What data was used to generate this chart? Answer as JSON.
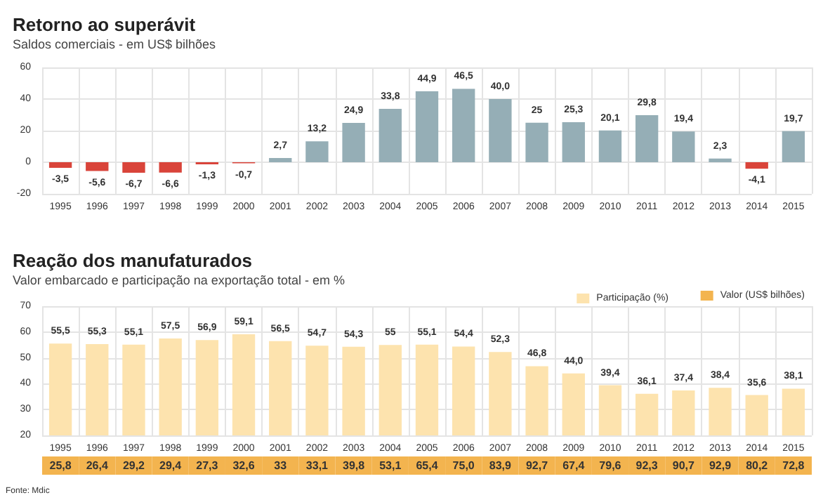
{
  "chart_data": [
    {
      "type": "bar",
      "title": "Retorno ao superávit",
      "subtitle": "Saldos comerciais - em US$ bilhões",
      "categories": [
        "1995",
        "1996",
        "1997",
        "1998",
        "1999",
        "2000",
        "2001",
        "2002",
        "2003",
        "2004",
        "2005",
        "2006",
        "2007",
        "2008",
        "2009",
        "2010",
        "2011",
        "2012",
        "2013",
        "2014",
        "2015"
      ],
      "values": [
        -3.5,
        -5.6,
        -6.7,
        -6.6,
        -1.3,
        -0.7,
        2.7,
        13.2,
        24.9,
        33.8,
        44.9,
        46.5,
        40.0,
        25,
        25.3,
        20.1,
        29.8,
        19.4,
        2.3,
        -4.1,
        19.7
      ],
      "colors": [
        "#d9443a",
        "#d9443a",
        "#d9443a",
        "#d9443a",
        "#d9443a",
        "#d9443a",
        "#95aeb6",
        "#95aeb6",
        "#95aeb6",
        "#95aeb6",
        "#95aeb6",
        "#95aeb6",
        "#95aeb6",
        "#95aeb6",
        "#95aeb6",
        "#95aeb6",
        "#95aeb6",
        "#95aeb6",
        "#95aeb6",
        "#d9443a",
        "#95aeb6"
      ],
      "value_labels": [
        "-3,5",
        "-5,6",
        "-6,7",
        "-6,6",
        "-1,3",
        "-0,7",
        "2,7",
        "13,2",
        "24,9",
        "33,8",
        "44,9",
        "46,5",
        "40,0",
        "25",
        "25,3",
        "20,1",
        "29,8",
        "19,4",
        "2,3",
        "-4,1",
        "19,7"
      ],
      "ylim": [
        -20,
        60
      ],
      "yticks": [
        -20,
        0,
        20,
        40,
        60
      ],
      "grid": true
    },
    {
      "type": "bar",
      "title": "Reação dos manufaturados",
      "subtitle": "Valor embarcado e participação na exportação total - em %",
      "categories": [
        "1995",
        "1996",
        "1997",
        "1998",
        "1999",
        "2000",
        "2001",
        "2002",
        "2003",
        "2004",
        "2005",
        "2006",
        "2007",
        "2008",
        "2009",
        "2010",
        "2011",
        "2012",
        "2013",
        "2014",
        "2015"
      ],
      "series": [
        {
          "name": "Participação (%)",
          "color": "#fde3ae",
          "values": [
            55.5,
            55.3,
            55.1,
            57.5,
            56.9,
            59.1,
            56.5,
            54.7,
            54.3,
            55,
            55.1,
            54.4,
            52.3,
            46.8,
            44.0,
            39.4,
            36.1,
            37.4,
            38.4,
            35.6,
            38.1
          ],
          "value_labels": [
            "55,5",
            "55,3",
            "55,1",
            "57,5",
            "56,9",
            "59,1",
            "56,5",
            "54,7",
            "54,3",
            "55",
            "55,1",
            "54,4",
            "52,3",
            "46,8",
            "44,0",
            "39,4",
            "36,1",
            "37,4",
            "38,4",
            "35,6",
            "38,1"
          ]
        }
      ],
      "ylim": [
        20,
        70
      ],
      "yticks": [
        20,
        30,
        40,
        50,
        60,
        70
      ],
      "grid": true,
      "legend": "top right",
      "annotations": [
        "Fonte: Mdic"
      ]
    },
    {
      "type": "other",
      "categories": [
        null,
        null,
        null,
        null,
        null,
        null,
        null,
        null,
        null,
        null,
        null,
        null,
        null,
        null,
        null,
        null,
        null,
        null,
        null,
        null,
        null
      ],
      "series": [
        {
          "name": "Valor (US$ bilhões)",
          "color": "#f3b44f",
          "values": [
            25.8,
            26.4,
            29.2,
            29.4,
            27.3,
            32.6,
            33,
            33.1,
            39.8,
            53.1,
            65.4,
            75.0,
            83.9,
            92.7,
            67.4,
            79.6,
            92.3,
            90.7,
            92.9,
            80.2,
            72.8
          ],
          "value_labels": [
            "25,8",
            "26,4",
            "29,2",
            "29,4",
            "27,3",
            "32,6",
            "33",
            "33,1",
            "39,8",
            "53,1",
            "65,4",
            "75,0",
            "83,9",
            "92,7",
            "67,4",
            "79,6",
            "92,3",
            "90,7",
            "92,9",
            "80,2",
            "72,8"
          ]
        }
      ],
      "legend": "top right"
    }
  ]
}
